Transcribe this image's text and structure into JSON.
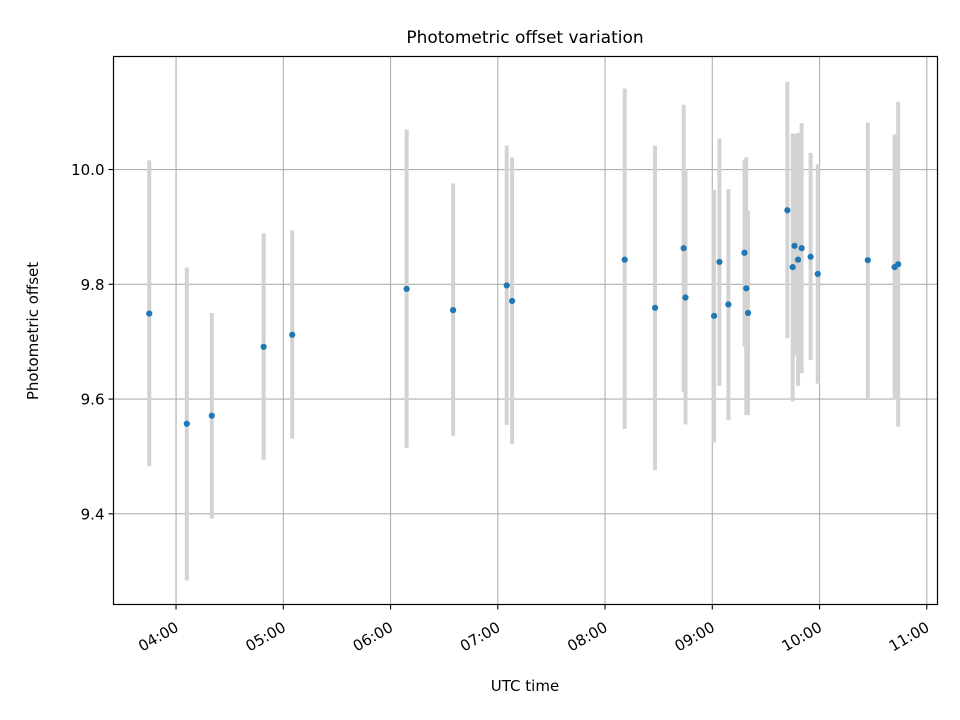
{
  "chart_data": {
    "type": "scatter",
    "title": "Photometric offset variation",
    "xlabel": "UTC time",
    "ylabel": "Photometric offset",
    "x_ticks": [
      "04:00",
      "05:00",
      "06:00",
      "07:00",
      "08:00",
      "09:00",
      "10:00",
      "11:00"
    ],
    "y_ticks": [
      "9.4",
      "9.6",
      "9.8",
      "10.0"
    ],
    "xlim": [
      "03:25",
      "11:06"
    ],
    "ylim": [
      9.242,
      10.197
    ],
    "grid": true,
    "colors": {
      "point": "#1f77b4",
      "errorbar": "#d3d3d3",
      "grid": "#b0b0b0"
    },
    "points": [
      {
        "x": "03:45",
        "y": 9.749,
        "ylow": 9.483,
        "yhigh": 10.016
      },
      {
        "x": "04:06",
        "y": 9.557,
        "ylow": 9.284,
        "yhigh": 9.829
      },
      {
        "x": "04:20",
        "y": 9.571,
        "ylow": 9.392,
        "yhigh": 9.75
      },
      {
        "x": "04:49",
        "y": 9.691,
        "ylow": 9.494,
        "yhigh": 9.889
      },
      {
        "x": "05:05",
        "y": 9.712,
        "ylow": 9.531,
        "yhigh": 9.894
      },
      {
        "x": "06:09",
        "y": 9.792,
        "ylow": 9.515,
        "yhigh": 10.07
      },
      {
        "x": "06:35",
        "y": 9.755,
        "ylow": 9.536,
        "yhigh": 9.976
      },
      {
        "x": "07:05",
        "y": 9.798,
        "ylow": 9.555,
        "yhigh": 10.042
      },
      {
        "x": "07:08",
        "y": 9.771,
        "ylow": 9.522,
        "yhigh": 10.021
      },
      {
        "x": "08:11",
        "y": 9.843,
        "ylow": 9.548,
        "yhigh": 10.141
      },
      {
        "x": "08:28",
        "y": 9.759,
        "ylow": 9.476,
        "yhigh": 10.042
      },
      {
        "x": "08:44",
        "y": 9.863,
        "ylow": 9.612,
        "yhigh": 10.113
      },
      {
        "x": "08:45",
        "y": 9.777,
        "ylow": 9.556,
        "yhigh": 9.998
      },
      {
        "x": "09:01",
        "y": 9.745,
        "ylow": 9.524,
        "yhigh": 9.964
      },
      {
        "x": "09:04",
        "y": 9.839,
        "ylow": 9.623,
        "yhigh": 10.054
      },
      {
        "x": "09:09",
        "y": 9.765,
        "ylow": 9.563,
        "yhigh": 9.966
      },
      {
        "x": "09:18",
        "y": 9.855,
        "ylow": 9.692,
        "yhigh": 10.016
      },
      {
        "x": "09:19",
        "y": 9.793,
        "ylow": 9.572,
        "yhigh": 10.021
      },
      {
        "x": "09:20",
        "y": 9.75,
        "ylow": 9.572,
        "yhigh": 9.928
      },
      {
        "x": "09:42",
        "y": 9.929,
        "ylow": 9.706,
        "yhigh": 10.153
      },
      {
        "x": "09:45",
        "y": 9.83,
        "ylow": 9.596,
        "yhigh": 10.063
      },
      {
        "x": "09:46",
        "y": 9.867,
        "ylow": 9.676,
        "yhigh": 10.062
      },
      {
        "x": "09:48",
        "y": 9.843,
        "ylow": 9.623,
        "yhigh": 10.064
      },
      {
        "x": "09:50",
        "y": 9.863,
        "ylow": 9.645,
        "yhigh": 10.081
      },
      {
        "x": "09:55",
        "y": 9.848,
        "ylow": 9.668,
        "yhigh": 10.029
      },
      {
        "x": "09:59",
        "y": 9.818,
        "ylow": 9.627,
        "yhigh": 10.009
      },
      {
        "x": "10:27",
        "y": 9.842,
        "ylow": 9.602,
        "yhigh": 10.082
      },
      {
        "x": "10:42",
        "y": 9.83,
        "ylow": 9.599,
        "yhigh": 10.061
      },
      {
        "x": "10:44",
        "y": 9.835,
        "ylow": 9.552,
        "yhigh": 10.118
      }
    ]
  }
}
